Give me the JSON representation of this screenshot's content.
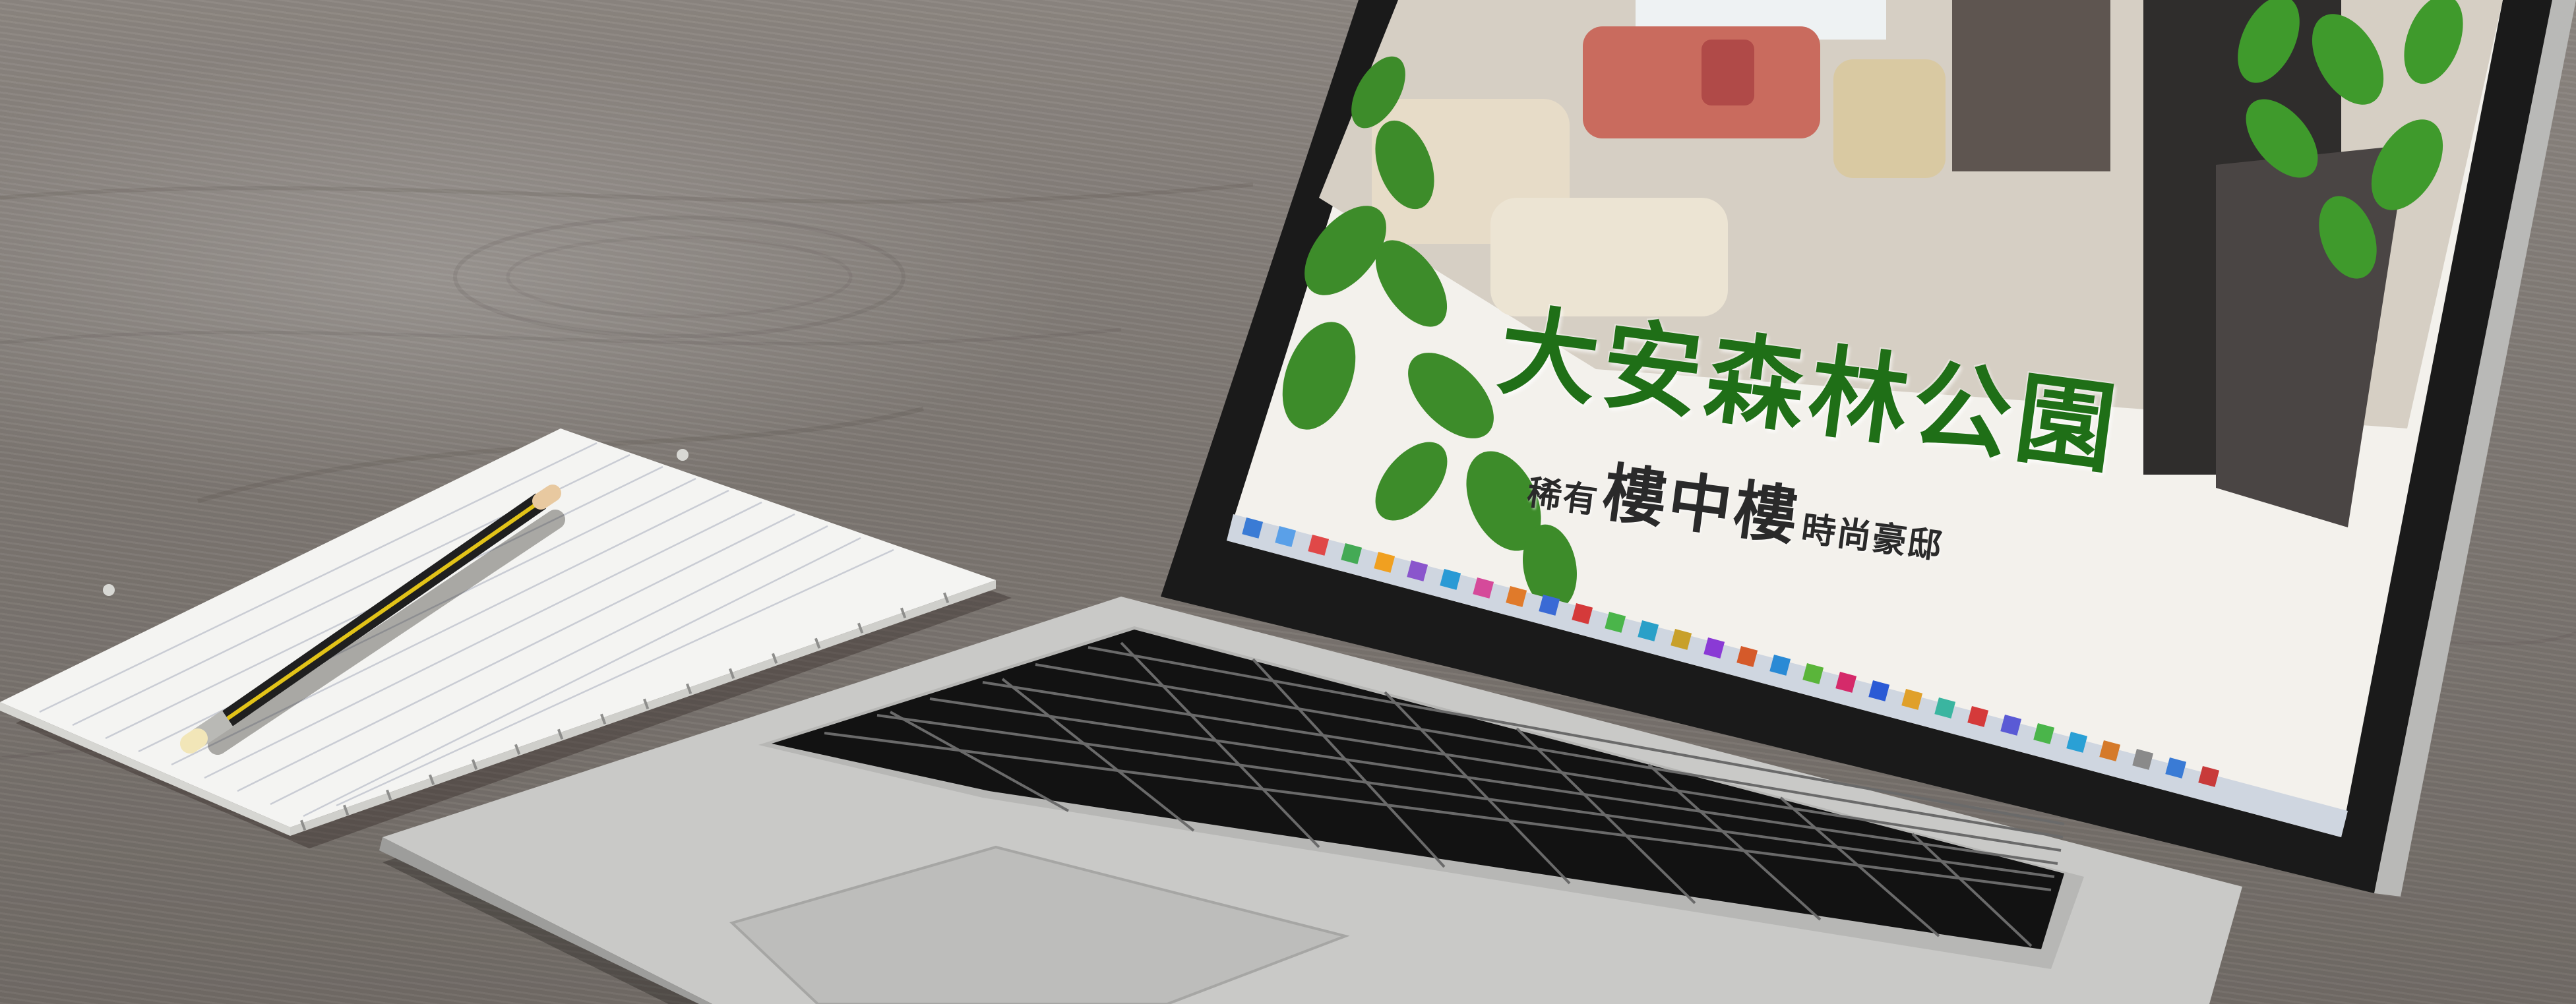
{
  "website": {
    "headline": "大安森林公園",
    "tagline_prefix": "稀有",
    "tagline_emphasis": "樓中樓",
    "tagline_suffix": "時尚豪邸",
    "headline_color": "#1f6f17"
  },
  "scene": {
    "desk_color": "#7e7873",
    "laptop_color": "#c9c9c7",
    "pencil_color": "#1f1f1f",
    "pencil_stripe_color": "#e2c318"
  }
}
